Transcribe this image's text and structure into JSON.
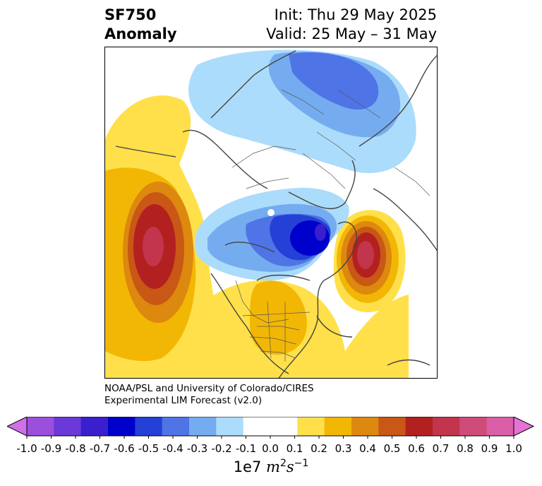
{
  "header": {
    "var_name": "SF750",
    "var_type": "Anomaly",
    "init": "Init: Thu 29 May 2025",
    "valid": "Valid: 25 May – 31 May"
  },
  "credit": {
    "line1": "NOAA/PSL and University of Colorado/CIRES",
    "line2": "Experimental LIM Forecast (v2.0)"
  },
  "colorbar": {
    "ticks": [
      "-1.0",
      "-0.9",
      "-0.8",
      "-0.7",
      "-0.6",
      "-0.5",
      "-0.4",
      "-0.3",
      "-0.2",
      "-0.1",
      "0.0",
      "0.1",
      "0.2",
      "0.3",
      "0.4",
      "0.5",
      "0.6",
      "0.7",
      "0.8",
      "0.9",
      "1.0"
    ],
    "colors": [
      "#d070e8",
      "#9b4fdc",
      "#6a39d8",
      "#3a1fcf",
      "#0000cc",
      "#2540d6",
      "#4f74e6",
      "#75acf0",
      "#abdcfb",
      "#ffffff",
      "#ffffff",
      "#ffe04a",
      "#f2b705",
      "#dd880e",
      "#c95715",
      "#b32020",
      "#c3354c",
      "#cf4b7a",
      "#da5ea8",
      "#e672d6"
    ],
    "unit_base": "1e7",
    "unit_var": "m",
    "unit_exp1": "2",
    "unit_var2": "s",
    "unit_exp2": "−1"
  },
  "map": {
    "projection": "north-polar-stereographic",
    "anomalies": [
      {
        "name": "north-pacific-high",
        "sign": "positive",
        "peak": 0.7
      },
      {
        "name": "north-atlantic-high",
        "sign": "positive",
        "peak": 0.7
      },
      {
        "name": "eastern-us-high",
        "sign": "positive",
        "peak": 0.3
      },
      {
        "name": "baffin-low",
        "sign": "negative",
        "peak": -0.6
      },
      {
        "name": "arctic-siberia-low",
        "sign": "negative",
        "peak": -0.4
      }
    ]
  }
}
